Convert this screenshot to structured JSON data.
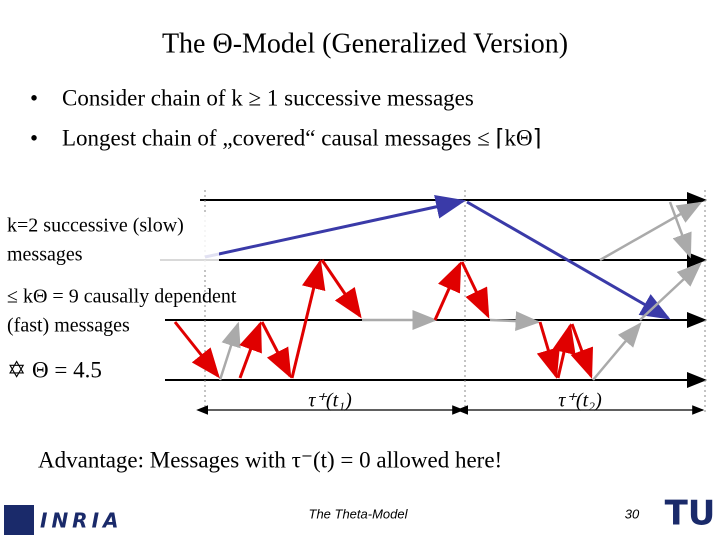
{
  "header": {
    "title": "The Θ-Model (Generalized Version)"
  },
  "bullets": [
    "Consider chain of k ≥ 1 successive messages",
    "Longest chain of „covered“ causal messages ≤ ⌈kΘ⌉"
  ],
  "diagram": {
    "slow_label": [
      "k=2 successive (slow)",
      "messages"
    ],
    "fast_label": [
      "≤ kΘ = 9 causally dependent",
      "(fast) messages"
    ],
    "theta_label": "✡ Θ = 4.5",
    "tau_labels": [
      "τ⁺(t₁)",
      "τ⁺(t₂)"
    ]
  },
  "advantage": "Advantage: Messages with τ⁻(t) = 0 allowed here!",
  "footer": {
    "left_logo": "INRIA",
    "center": "The Theta-Model",
    "page": "30",
    "right_logo": "TU"
  }
}
